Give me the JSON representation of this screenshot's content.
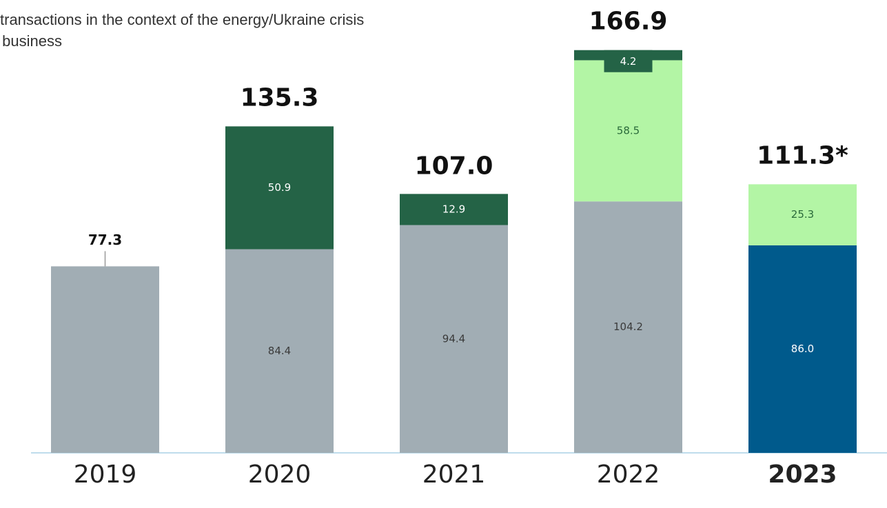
{
  "chart_data": {
    "type": "stacked-bar",
    "subtitle_lines": [
      "transactions in the context of the energy/Ukraine crisis",
      "y business"
    ],
    "categories": [
      "2019",
      "2020",
      "2021",
      "2022",
      "2023"
    ],
    "category_bold": [
      false,
      false,
      false,
      false,
      true
    ],
    "series": [
      {
        "color": "#a1adb4",
        "label_color": "#3a3a3a",
        "values": [
          77.3,
          84.4,
          94.4,
          104.2,
          null
        ],
        "value_labels": [
          null,
          "84.4",
          "94.4",
          "104.2",
          null
        ]
      },
      {
        "color": "#005a8c",
        "label_color": "#ffffff",
        "values": [
          null,
          null,
          null,
          null,
          86.0
        ],
        "value_labels": [
          null,
          null,
          null,
          null,
          "86.0"
        ]
      },
      {
        "color": "#b3f5a5",
        "label_color": "#2a6a3a",
        "values": [
          null,
          null,
          null,
          58.5,
          25.3
        ],
        "value_labels": [
          null,
          null,
          null,
          "58.5",
          "25.3"
        ]
      },
      {
        "color": "#246346",
        "label_color": "#ffffff",
        "values": [
          null,
          50.9,
          12.9,
          4.2,
          null
        ],
        "value_labels": [
          null,
          "50.9",
          "12.9",
          "4.2",
          null
        ]
      }
    ],
    "totals": [
      77.3,
      135.3,
      107.0,
      166.9,
      111.3
    ],
    "total_labels": [
      "77.3",
      "135.3",
      "107.0",
      "166.9",
      "111.3*"
    ],
    "ylim": [
      0,
      187.1
    ]
  }
}
